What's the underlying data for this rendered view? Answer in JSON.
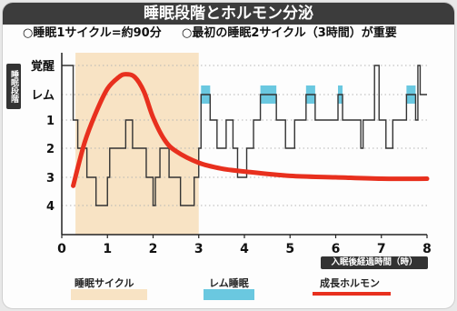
{
  "title": "睡眠段階とホルモン分泌",
  "notes": [
    "○睡眠1サイクル=約90分",
    "○最初の睡眠2サイクル（3時間）が重要"
  ],
  "chart_data": {
    "type": "line",
    "ylabel": "睡眠段階",
    "xlabel": "入眠後経過時間（時）",
    "xlim": [
      0,
      8
    ],
    "x_ticks": [
      "0",
      "1",
      "2",
      "3",
      "4",
      "5",
      "6",
      "7",
      "8"
    ],
    "y_ticks": [
      "覚醒",
      "レム",
      "1",
      "2",
      "3",
      "4"
    ],
    "colors": {
      "cycle_shade": "#f8e3c4",
      "rem": "#6ac8e0",
      "hormone": "#e8301e",
      "stage_line": "#333333"
    },
    "sleep_cycle_span": [
      0.3,
      3.0
    ],
    "series": [
      {
        "name": "",
        "kind": "sleep_stage_step",
        "x": [
          0.0,
          0.25,
          0.35,
          0.55,
          0.75,
          1.0,
          1.05,
          1.4,
          1.55,
          1.85,
          2.0,
          2.05,
          2.15,
          2.35,
          2.6,
          2.9,
          3.0,
          3.05,
          3.25,
          3.4,
          3.6,
          3.75,
          3.85,
          4.05,
          4.2,
          4.35,
          4.7,
          4.9,
          5.1,
          5.35,
          5.55,
          6.05,
          6.15,
          6.55,
          6.6,
          6.85,
          6.95,
          7.1,
          7.25,
          7.55,
          7.75,
          7.8,
          7.85,
          8.0
        ],
        "stage": [
          "覚醒",
          "1",
          "2",
          "3",
          "4",
          "3",
          "2",
          "1",
          "2",
          "3",
          "4",
          "3",
          "2",
          "3",
          "4",
          "3",
          "2",
          "レム",
          "1",
          "2",
          "1",
          "2",
          "3",
          "2",
          "1",
          "レム",
          "1",
          "2",
          "1",
          "レム",
          "1",
          "レム",
          "1",
          "2",
          "1",
          "覚醒",
          "1",
          "2",
          "1",
          "レム",
          "1",
          "覚醒",
          "レム",
          "レム"
        ]
      },
      {
        "name": "",
        "kind": "hormone_curve",
        "x": [
          0.25,
          0.5,
          0.75,
          1.0,
          1.25,
          1.4,
          1.6,
          1.8,
          2.0,
          2.25,
          2.5,
          3.0,
          3.5,
          4.0,
          5.0,
          6.0,
          7.0,
          8.0
        ],
        "y": [
          4.3,
          2.8,
          1.7,
          0.8,
          0.4,
          0.3,
          0.4,
          0.9,
          1.9,
          2.7,
          3.1,
          3.5,
          3.7,
          3.8,
          3.95,
          4.0,
          4.05,
          4.05
        ]
      }
    ],
    "rem_spans": [
      [
        3.05,
        3.25
      ],
      [
        4.35,
        4.7
      ],
      [
        5.35,
        5.55
      ],
      [
        6.05,
        6.15
      ],
      [
        7.55,
        7.75
      ]
    ],
    "legend": {
      "placement": "bottom",
      "items": [
        {
          "label": "睡眠サイクル",
          "kind": "shade"
        },
        {
          "label": "レム睡眠",
          "kind": "rem"
        },
        {
          "label": "成長ホルモン",
          "kind": "hormone"
        }
      ]
    }
  }
}
